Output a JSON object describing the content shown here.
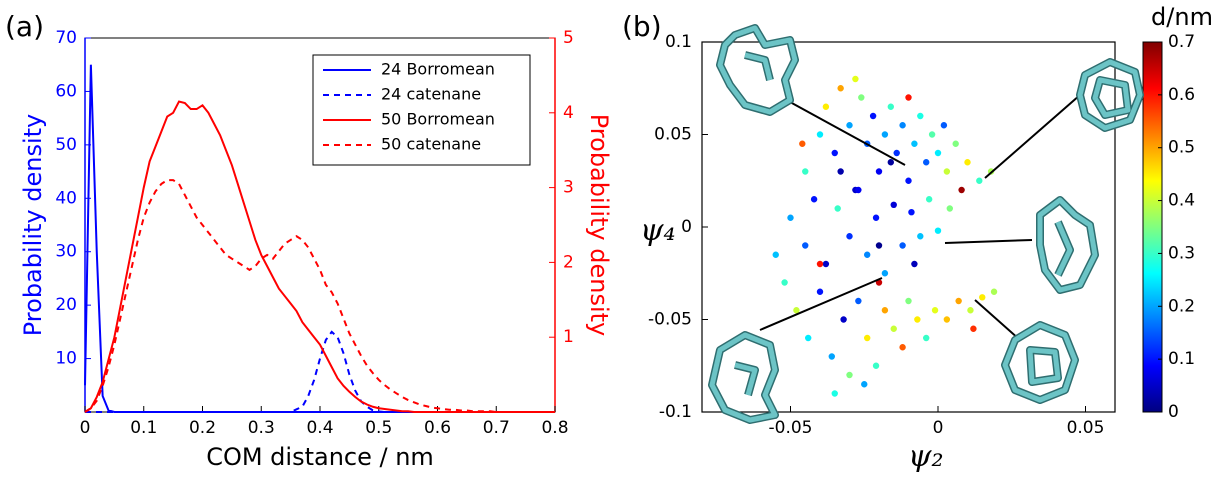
{
  "chart_data": [
    {
      "type": "line",
      "panel_label": "(a)",
      "xlabel": "COM distance / nm",
      "ylabel": "Probability density",
      "y2label": "Probability density",
      "y_color": "#0000ff",
      "y2_color": "#ff0000",
      "legend": "upper right",
      "xlim": [
        0,
        0.8
      ],
      "xticks": [
        0,
        0.1,
        0.2,
        0.3,
        0.4,
        0.5,
        0.6,
        0.7,
        0.8
      ],
      "ylim": [
        0,
        70
      ],
      "yticks": [
        10,
        20,
        30,
        40,
        50,
        60,
        70
      ],
      "y2lim": [
        0,
        5
      ],
      "y2ticks": [
        1,
        2,
        3,
        4,
        5
      ],
      "x": [
        0,
        0.01,
        0.02,
        0.03,
        0.04,
        0.05,
        0.06,
        0.07,
        0.08,
        0.09,
        0.1,
        0.11,
        0.12,
        0.13,
        0.14,
        0.15,
        0.16,
        0.17,
        0.18,
        0.19,
        0.2,
        0.21,
        0.22,
        0.23,
        0.24,
        0.25,
        0.26,
        0.27,
        0.28,
        0.29,
        0.3,
        0.31,
        0.32,
        0.33,
        0.34,
        0.35,
        0.36,
        0.37,
        0.38,
        0.39,
        0.4,
        0.41,
        0.42,
        0.43,
        0.44,
        0.45,
        0.46,
        0.47,
        0.48,
        0.49,
        0.5,
        0.51,
        0.52,
        0.53,
        0.54,
        0.55,
        0.56,
        0.57,
        0.58,
        0.59,
        0.6,
        0.61,
        0.62,
        0.63,
        0.64,
        0.65,
        0.66,
        0.67,
        0.68,
        0.69,
        0.7,
        0.71,
        0.72,
        0.73,
        0.74,
        0.75,
        0.76,
        0.77,
        0.78,
        0.79,
        0.8
      ],
      "series": [
        {
          "name": "24 Borromean",
          "color": "#0000ff",
          "linestyle": "solid",
          "axis": "y",
          "values": [
            5,
            65,
            30,
            3,
            0.3,
            0,
            0,
            0,
            0,
            0,
            0,
            0,
            0,
            0,
            0,
            0,
            0,
            0,
            0,
            0,
            0,
            0,
            0,
            0,
            0,
            0,
            0,
            0,
            0,
            0,
            0,
            0,
            0,
            0,
            0,
            0,
            0,
            0,
            0,
            0,
            0,
            0,
            0,
            0,
            0,
            0,
            0,
            0,
            0,
            0,
            0,
            0,
            0,
            0,
            0,
            0,
            0,
            0,
            0,
            0,
            0,
            0,
            0,
            0,
            0,
            0,
            0,
            0,
            0,
            0,
            0,
            0,
            0,
            0,
            0,
            0,
            0,
            0,
            0,
            0,
            0
          ]
        },
        {
          "name": "24 catenane",
          "color": "#0000ff",
          "linestyle": "dashed",
          "axis": "y",
          "values": [
            0,
            0,
            0,
            0,
            0,
            0,
            0,
            0,
            0,
            0,
            0,
            0,
            0,
            0,
            0,
            0,
            0,
            0,
            0,
            0,
            0,
            0,
            0,
            0,
            0,
            0,
            0,
            0,
            0,
            0,
            0,
            0,
            0,
            0,
            0,
            0,
            0.5,
            1,
            3,
            6,
            10,
            13.5,
            15,
            14,
            11,
            7,
            4,
            2,
            1,
            0.3,
            0.1,
            0,
            0,
            0,
            0,
            0,
            0,
            0,
            0,
            0,
            0,
            0,
            0,
            0,
            0,
            0,
            0,
            0,
            0,
            0,
            0,
            0,
            0,
            0,
            0,
            0,
            0,
            0,
            0,
            0,
            0
          ]
        },
        {
          "name": "50 Borromean",
          "color": "#ff0000",
          "linestyle": "solid",
          "axis": "y2",
          "values": [
            0,
            0.05,
            0.2,
            0.4,
            0.7,
            1.0,
            1.4,
            1.8,
            2.2,
            2.6,
            3.0,
            3.35,
            3.55,
            3.75,
            3.95,
            4.0,
            4.15,
            4.13,
            4.05,
            4.05,
            4.1,
            4.0,
            3.85,
            3.7,
            3.5,
            3.3,
            3.05,
            2.8,
            2.55,
            2.3,
            2.1,
            1.95,
            1.8,
            1.65,
            1.55,
            1.45,
            1.35,
            1.2,
            1.1,
            1.0,
            0.9,
            0.75,
            0.6,
            0.45,
            0.35,
            0.27,
            0.2,
            0.14,
            0.1,
            0.07,
            0.05,
            0.04,
            0.03,
            0.02,
            0.01,
            0.01,
            0,
            0,
            0,
            0,
            0,
            0,
            0,
            0,
            0,
            0,
            0,
            0,
            0,
            0,
            0,
            0,
            0,
            0,
            0,
            0,
            0,
            0,
            0,
            0,
            0
          ]
        },
        {
          "name": "50 catenane",
          "color": "#ff0000",
          "linestyle": "dashed",
          "axis": "y2",
          "values": [
            0,
            0.05,
            0.15,
            0.35,
            0.6,
            0.9,
            1.25,
            1.6,
            1.95,
            2.3,
            2.6,
            2.8,
            2.95,
            3.05,
            3.1,
            3.1,
            3.05,
            2.9,
            2.75,
            2.6,
            2.5,
            2.4,
            2.3,
            2.2,
            2.1,
            2.05,
            2.0,
            1.95,
            1.9,
            1.95,
            2.05,
            2.1,
            2.05,
            2.15,
            2.25,
            2.3,
            2.35,
            2.3,
            2.2,
            2.05,
            1.9,
            1.7,
            1.6,
            1.45,
            1.25,
            1.05,
            0.9,
            0.75,
            0.62,
            0.52,
            0.43,
            0.36,
            0.3,
            0.25,
            0.2,
            0.16,
            0.13,
            0.1,
            0.08,
            0.06,
            0.05,
            0.04,
            0.03,
            0.03,
            0.02,
            0.02,
            0.01,
            0.01,
            0.01,
            0.01,
            0,
            0,
            0,
            0,
            0,
            0,
            0,
            0,
            0,
            0,
            0
          ]
        }
      ]
    },
    {
      "type": "scatter",
      "panel_label": "(b)",
      "xlabel": "ψ₂",
      "ylabel": "ψ₄",
      "colorbar_label": "d/nm",
      "colormap": "jet",
      "xlim": [
        -0.08,
        0.06
      ],
      "xticks": [
        -0.05,
        0,
        0.05
      ],
      "ylim": [
        -0.1,
        0.1
      ],
      "yticks": [
        -0.1,
        -0.05,
        0,
        0.05,
        0.1
      ],
      "clim": [
        0,
        0.7
      ],
      "cticks": [
        0,
        0.1,
        0.2,
        0.3,
        0.4,
        0.5,
        0.6,
        0.7
      ],
      "x": [
        -0.045,
        -0.04,
        -0.038,
        -0.035,
        -0.033,
        -0.03,
        -0.028,
        -0.026,
        -0.024,
        -0.022,
        -0.02,
        -0.018,
        -0.016,
        -0.014,
        -0.012,
        -0.01,
        -0.008,
        -0.006,
        -0.004,
        -0.002,
        0,
        0.003,
        0.006,
        0.01,
        0.014,
        0.018,
        -0.05,
        -0.045,
        -0.042,
        -0.038,
        -0.034,
        -0.03,
        -0.027,
        -0.024,
        -0.021,
        -0.018,
        -0.015,
        -0.012,
        -0.009,
        -0.006,
        -0.003,
        0,
        0.004,
        -0.052,
        -0.048,
        -0.044,
        -0.04,
        -0.036,
        -0.032,
        -0.03,
        -0.027,
        -0.024,
        -0.021,
        -0.018,
        -0.015,
        -0.012,
        -0.01,
        -0.007,
        -0.004,
        -0.001,
        0.003,
        0.007,
        0.011,
        0.015,
        0.019,
        -0.025,
        -0.035,
        -0.02,
        -0.01,
        0.008,
        -0.046,
        -0.028,
        -0.008,
        -0.016,
        -0.04,
        0.012,
        -0.055,
        -0.033,
        0.002,
        -0.02
      ],
      "values": [
        0.03,
        0.05,
        0.065,
        0.04,
        0.075,
        0.055,
        0.02,
        0.07,
        0.045,
        0.06,
        0.03,
        0.05,
        0.065,
        0.04,
        0.055,
        0.025,
        0.045,
        0.06,
        0.035,
        0.05,
        0.04,
        0.03,
        0.045,
        0.035,
        0.025,
        0.03,
        0.005,
        -0.01,
        0.015,
        -0.02,
        0.01,
        -0.005,
        0.02,
        -0.015,
        0.005,
        -0.025,
        0.012,
        -0.01,
        0.008,
        -0.005,
        0.015,
        -0.002,
        0.01,
        -0.03,
        -0.045,
        -0.06,
        -0.035,
        -0.07,
        -0.05,
        -0.08,
        -0.04,
        -0.06,
        -0.075,
        -0.045,
        -0.055,
        -0.065,
        -0.04,
        -0.05,
        -0.06,
        -0.045,
        -0.05,
        -0.04,
        -0.045,
        -0.038,
        -0.035,
        -0.085,
        -0.09,
        -0.03,
        0.07,
        0.02,
        0.045,
        0.08,
        -0.02,
        0.035,
        -0.02,
        -0.055,
        -0.015,
        0.03,
        0.055,
        -0.01
      ],
      "d": [
        0.3,
        0.25,
        0.45,
        0.1,
        0.5,
        0.2,
        0.05,
        0.35,
        0.15,
        0.1,
        0.08,
        0.2,
        0.3,
        0.12,
        0.18,
        0.1,
        0.22,
        0.28,
        0.15,
        0.32,
        0.25,
        0.4,
        0.35,
        0.45,
        0.3,
        0.38,
        0.2,
        0.15,
        0.1,
        0.05,
        0.3,
        0.12,
        0.08,
        0.18,
        0.1,
        0.2,
        0.06,
        0.15,
        0.1,
        0.22,
        0.3,
        0.25,
        0.35,
        0.3,
        0.4,
        0.25,
        0.1,
        0.2,
        0.05,
        0.35,
        0.15,
        0.45,
        0.3,
        0.5,
        0.4,
        0.55,
        0.35,
        0.45,
        0.3,
        0.42,
        0.48,
        0.5,
        0.4,
        0.45,
        0.38,
        0.2,
        0.28,
        0.65,
        0.6,
        0.68,
        0.55,
        0.42,
        0.04,
        0.02,
        0.6,
        0.58,
        0.22,
        0.03,
        0.15,
        0.01
      ]
    }
  ]
}
